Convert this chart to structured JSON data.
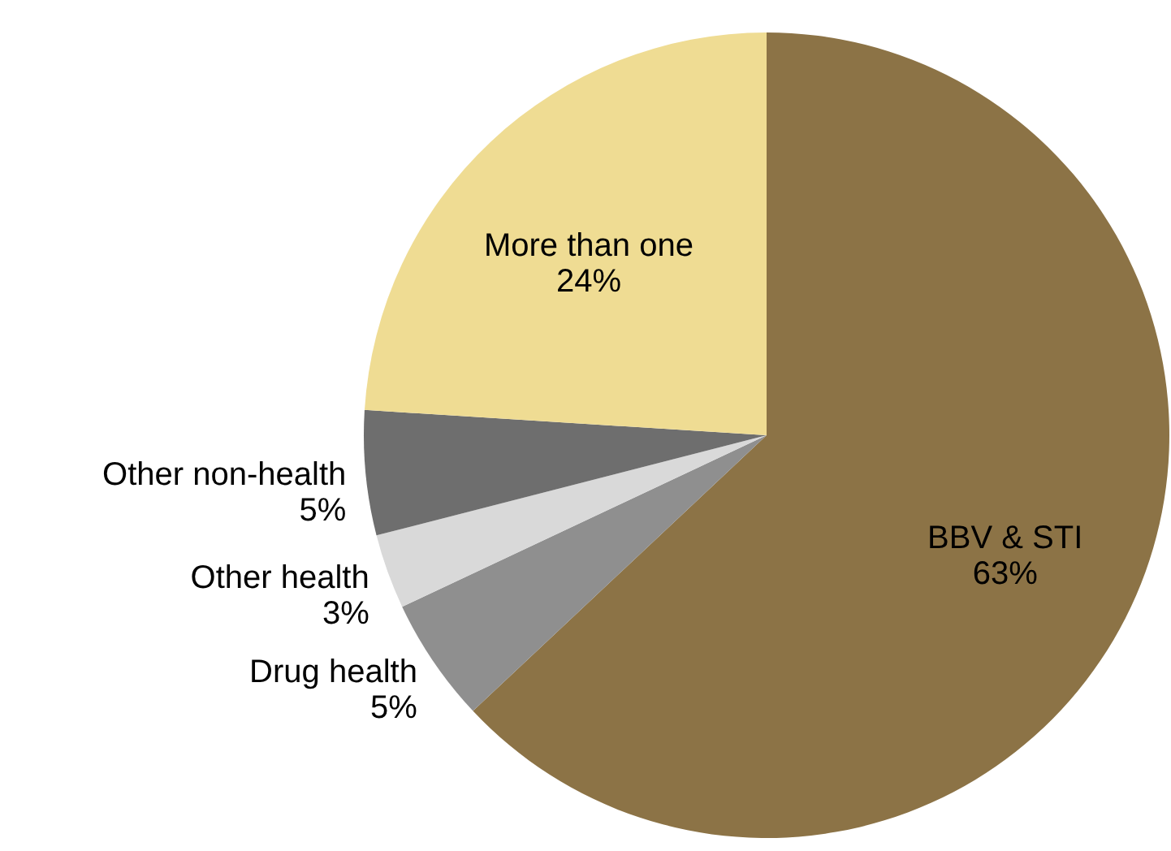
{
  "chart_data": {
    "type": "pie",
    "categories": [
      "BBV & STI",
      "Drug health",
      "Other health",
      "Other non-health",
      "More than one"
    ],
    "values": [
      63,
      5,
      3,
      5,
      24
    ],
    "value_labels": [
      "63%",
      "5%",
      "3%",
      "5%",
      "24%"
    ],
    "colors": [
      "#8c7346",
      "#8f8f8f",
      "#d9d9d9",
      "#6e6e6e",
      "#efdc93"
    ]
  }
}
